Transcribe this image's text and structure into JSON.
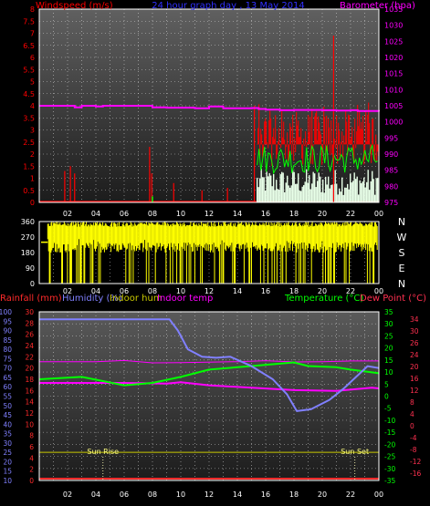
{
  "title": "24 hour graph day , 13 May 2014",
  "colors": {
    "wind": "#ff0000",
    "baro": "#ff00ff",
    "gust": "#00ff00",
    "winddir": "#ffff00",
    "rain": "#ff2a2a",
    "humidity": "#8080ff",
    "indoor_hum": "#c8c800",
    "indoor_temp": "#ff00ff",
    "temperature": "#00ff00",
    "dewpoint": "#ff3050",
    "grid": "#ffffff",
    "panel_top": "#606060",
    "panel_bottom": "#202020"
  },
  "x_tick_labels": [
    "02",
    "04",
    "06",
    "08",
    "10",
    "12",
    "14",
    "16",
    "18",
    "20",
    "22",
    "00"
  ],
  "chart_data": [
    {
      "type": "line",
      "name": "wind-barometer",
      "ylabel_left": "Windspeed (m/s)",
      "ylabel_right": "Barometer (hpa)",
      "ylim_left": [
        0,
        8
      ],
      "ylim_right": [
        975,
        1035
      ],
      "yticks_left": [
        "0",
        "0.5",
        "1",
        "1.5",
        "2",
        "2.5",
        "3",
        "3.5",
        "4",
        "4.5",
        "5",
        "5.5",
        "6",
        "6.5",
        "7",
        "7.5",
        "8"
      ],
      "yticks_right": [
        "975",
        "980",
        "985",
        "990",
        "995",
        "1000",
        "1005",
        "1010",
        "1015",
        "1020",
        "1025",
        "1030",
        "1035"
      ],
      "x_hours": [
        0,
        24
      ],
      "barometer": {
        "x": [
          0,
          2,
          2.5,
          3,
          4,
          4.5,
          7,
          8,
          9,
          11,
          12,
          13,
          15,
          15.5,
          16,
          17,
          18,
          19,
          20,
          21,
          22,
          22.5,
          23,
          24
        ],
        "y": [
          1005,
          1005,
          1004.5,
          1005,
          1004.8,
          1005,
          1005,
          1004.5,
          1004.4,
          1004.2,
          1004.8,
          1004.2,
          1004.3,
          1004,
          1003.8,
          1003.6,
          1003.7,
          1003.7,
          1003.6,
          1003.5,
          1003.6,
          1003.4,
          1003.4,
          1003.2
        ]
      },
      "wind_spikes": [
        {
          "x": 1.8,
          "y": 1.3
        },
        {
          "x": 2.2,
          "y": 1.5
        },
        {
          "x": 2.5,
          "y": 1.2
        },
        {
          "x": 7.8,
          "y": 2.3
        },
        {
          "x": 7.95,
          "y": 1.2
        },
        {
          "x": 9.5,
          "y": 0.8
        },
        {
          "x": 11.5,
          "y": 0.5
        },
        {
          "x": 13.3,
          "y": 0.6
        },
        {
          "x": 15.2,
          "y": 4.0
        },
        {
          "x": 20.8,
          "y": 6.9
        }
      ],
      "wind_active": {
        "x_start": 15.4,
        "x_end": 24,
        "y_min": 1.5,
        "y_max": 3.8
      },
      "gust_active": {
        "x_start": 15.4,
        "x_end": 24,
        "y_min": 1.2,
        "y_max": 2.4
      },
      "avg_active": {
        "x_start": 15.4,
        "x_end": 24,
        "y_min": 0.3,
        "y_max": 1.4
      }
    },
    {
      "type": "scatter",
      "name": "wind-direction",
      "ylim": [
        0,
        360
      ],
      "yticks": [
        "0",
        "90",
        "180",
        "270",
        "360"
      ],
      "right_labels": [
        "N",
        "W",
        "S",
        "E",
        "N"
      ],
      "x_start": 0.6,
      "start_level": 240,
      "band_min": 180,
      "band_max": 360
    },
    {
      "type": "line",
      "name": "temperature-humidity",
      "legend": [
        "Rainfall (mm)",
        "Humidity (%)",
        "Indoor hum",
        "Indoor temp",
        "Temperature (°C)",
        "Dew Point (°C)"
      ],
      "yticks_rain": [
        "0",
        "2",
        "4",
        "6",
        "8",
        "10",
        "12",
        "14",
        "16",
        "18",
        "20",
        "22",
        "24",
        "26",
        "28",
        "30"
      ],
      "yticks_hum": [
        "10",
        "15",
        "20",
        "25",
        "30",
        "35",
        "40",
        "45",
        "50",
        "55",
        "60",
        "65",
        "70",
        "75",
        "80",
        "85",
        "90",
        "95",
        "100"
      ],
      "yticks_temp": [
        "-35",
        "-30",
        "-25",
        "-20",
        "-15",
        "-10",
        "-5",
        "0",
        "5",
        "10",
        "15",
        "20",
        "25",
        "30",
        "35"
      ],
      "yticks_dew": [
        "-16",
        "-12",
        "-8",
        "-4",
        "0",
        "4",
        "8",
        "12",
        "16",
        "20",
        "24",
        "26",
        "30",
        "34"
      ],
      "ylim_hum": [
        10,
        100
      ],
      "ylim_temp": [
        -35,
        35
      ],
      "humidity": {
        "x": [
          0,
          9.2,
          9.8,
          10.5,
          11.5,
          12.5,
          13.5,
          15,
          16.5,
          17.5,
          18.2,
          19.2,
          20.5,
          21.5,
          23.2,
          24
        ],
        "y": [
          96,
          96,
          90,
          80,
          76,
          75.5,
          76,
          71,
          64,
          56,
          47,
          48,
          53,
          59,
          71,
          70
        ]
      },
      "temperature": {
        "x": [
          0,
          3,
          6,
          8,
          10,
          12,
          15,
          18,
          19,
          21,
          22,
          24
        ],
        "y": [
          7,
          8,
          4.5,
          5.5,
          8,
          11,
          12.5,
          14,
          12.5,
          12,
          11,
          9.5
        ]
      },
      "dewpoint": {
        "x": [
          0,
          6,
          9,
          10,
          12,
          15,
          18,
          21,
          23.5,
          24
        ],
        "y": [
          5.5,
          5.5,
          5.2,
          5.8,
          4.5,
          3.5,
          2.5,
          2.2,
          3.5,
          3.2
        ]
      },
      "indoor_temp": {
        "x": [
          0,
          4,
          6,
          8,
          10,
          14,
          16,
          18,
          20,
          22,
          24
        ],
        "y": [
          14.3,
          14.3,
          14.8,
          13.8,
          13.9,
          14.3,
          14.7,
          14.2,
          14.3,
          14.6,
          14.6
        ]
      },
      "indoor_hum": {
        "level": 25
      },
      "rainfall": {
        "level": 0
      },
      "markers": [
        {
          "label": "Sun Rise",
          "x": 4.5
        },
        {
          "label": "Sun Set",
          "x": 22.3
        }
      ]
    }
  ]
}
